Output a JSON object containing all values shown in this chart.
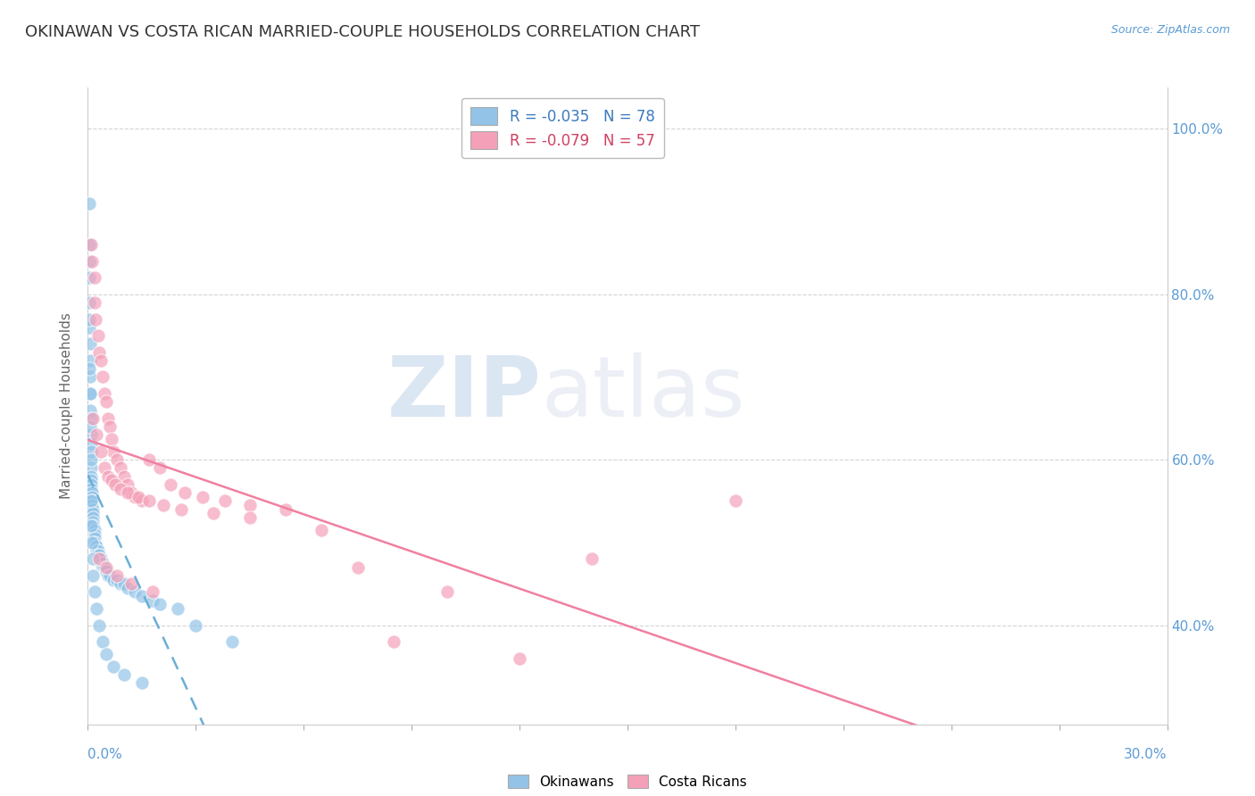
{
  "title": "OKINAWAN VS COSTA RICAN MARRIED-COUPLE HOUSEHOLDS CORRELATION CHART",
  "source": "Source: ZipAtlas.com",
  "ylabel": "Married-couple Households",
  "xlim": [
    0.0,
    30.0
  ],
  "ylim": [
    28.0,
    105.0
  ],
  "y_ticks": [
    40.0,
    60.0,
    80.0,
    100.0
  ],
  "y_tick_labels": [
    "40.0%",
    "60.0%",
    "80.0%",
    "100.0%"
  ],
  "legend_labels": [
    "R = -0.035   N = 78",
    "R = -0.079   N = 57"
  ],
  "okinawan_color": "#93c4e8",
  "costa_rican_color": "#f4a0b8",
  "okinawan_line_color": "#6aaed6",
  "costa_rican_line_color": "#f080a0",
  "tick_color": "#5b9bd5",
  "background_color": "#ffffff",
  "grid_color": "#d0d0d0",
  "title_color": "#333333",
  "source_color": "#5b9bd5",
  "ylabel_color": "#666666",
  "watermark_zip": "ZIP",
  "watermark_atlas": "atlas",
  "okinawan_x": [
    0.05,
    0.05,
    0.05,
    0.05,
    0.05,
    0.05,
    0.06,
    0.06,
    0.06,
    0.07,
    0.07,
    0.08,
    0.08,
    0.08,
    0.09,
    0.09,
    0.1,
    0.1,
    0.1,
    0.1,
    0.12,
    0.12,
    0.12,
    0.12,
    0.14,
    0.14,
    0.15,
    0.15,
    0.15,
    0.18,
    0.18,
    0.2,
    0.2,
    0.22,
    0.25,
    0.25,
    0.28,
    0.3,
    0.3,
    0.35,
    0.35,
    0.4,
    0.4,
    0.45,
    0.5,
    0.5,
    0.55,
    0.6,
    0.7,
    0.8,
    0.9,
    1.0,
    1.1,
    1.3,
    1.5,
    1.8,
    2.0,
    2.5,
    3.0,
    4.0,
    0.05,
    0.05,
    0.06,
    0.07,
    0.08,
    0.09,
    0.1,
    0.12,
    0.14,
    0.15,
    0.2,
    0.25,
    0.3,
    0.4,
    0.5,
    0.7,
    1.0,
    1.5
  ],
  "okinawan_y": [
    91.0,
    86.0,
    84.0,
    82.0,
    79.0,
    76.0,
    74.0,
    72.0,
    70.0,
    68.0,
    66.0,
    65.0,
    63.0,
    62.0,
    61.0,
    59.0,
    58.0,
    57.5,
    57.0,
    56.5,
    56.0,
    55.5,
    55.0,
    54.5,
    54.0,
    53.5,
    53.0,
    52.5,
    52.0,
    51.5,
    51.0,
    50.5,
    50.0,
    49.5,
    49.5,
    49.0,
    49.0,
    48.5,
    48.5,
    48.0,
    47.5,
    47.5,
    47.0,
    47.0,
    46.5,
    46.5,
    46.0,
    46.0,
    45.5,
    45.5,
    45.0,
    45.0,
    44.5,
    44.0,
    43.5,
    43.0,
    42.5,
    42.0,
    40.0,
    38.0,
    77.0,
    71.0,
    68.0,
    64.0,
    60.0,
    55.0,
    52.0,
    50.0,
    48.0,
    46.0,
    44.0,
    42.0,
    40.0,
    38.0,
    36.5,
    35.0,
    34.0,
    33.0
  ],
  "costa_rican_x": [
    0.08,
    0.12,
    0.18,
    0.2,
    0.22,
    0.28,
    0.32,
    0.35,
    0.4,
    0.45,
    0.5,
    0.55,
    0.6,
    0.65,
    0.7,
    0.8,
    0.9,
    1.0,
    1.1,
    1.2,
    1.3,
    1.5,
    1.7,
    2.0,
    2.3,
    2.7,
    3.2,
    3.8,
    4.5,
    5.5,
    7.5,
    10.0,
    14.0,
    18.0,
    0.15,
    0.25,
    0.35,
    0.45,
    0.55,
    0.65,
    0.75,
    0.9,
    1.1,
    1.4,
    1.7,
    2.1,
    2.6,
    3.5,
    4.5,
    6.5,
    8.5,
    12.0,
    0.3,
    0.5,
    0.8,
    1.2,
    1.8
  ],
  "costa_rican_y": [
    86.0,
    84.0,
    82.0,
    79.0,
    77.0,
    75.0,
    73.0,
    72.0,
    70.0,
    68.0,
    67.0,
    65.0,
    64.0,
    62.5,
    61.0,
    60.0,
    59.0,
    58.0,
    57.0,
    56.0,
    55.5,
    55.0,
    60.0,
    59.0,
    57.0,
    56.0,
    55.5,
    55.0,
    54.5,
    54.0,
    47.0,
    44.0,
    48.0,
    55.0,
    65.0,
    63.0,
    61.0,
    59.0,
    58.0,
    57.5,
    57.0,
    56.5,
    56.0,
    55.5,
    55.0,
    54.5,
    54.0,
    53.5,
    53.0,
    51.5,
    38.0,
    36.0,
    48.0,
    47.0,
    46.0,
    45.0,
    44.0
  ]
}
